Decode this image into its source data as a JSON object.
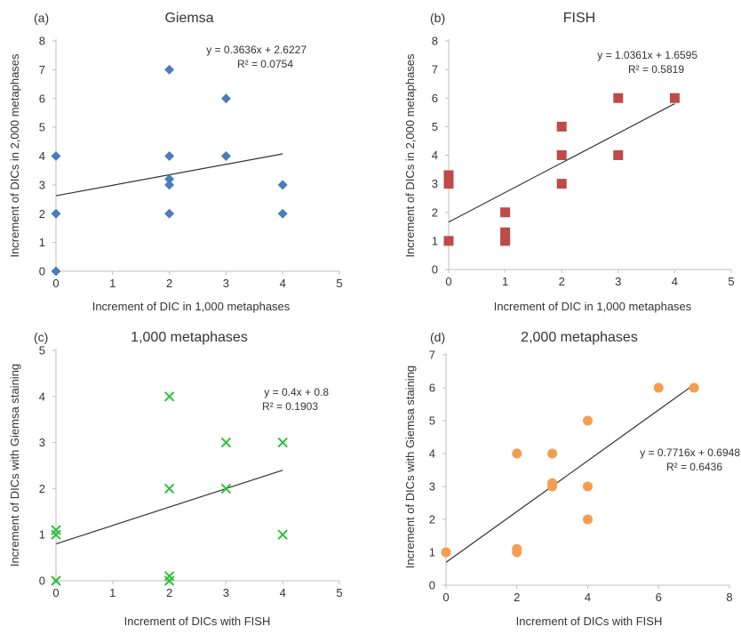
{
  "charts": [
    {
      "panel": "(a)",
      "type": "scatter",
      "title": "Giemsa",
      "xlabel": "Increment of DIC in 1,000 metaphases",
      "ylabel": "Increment of DICs in 2,000 metaphases",
      "xlim": [
        0,
        5
      ],
      "ylim": [
        0,
        8
      ],
      "xticks": [
        0,
        1,
        2,
        3,
        4,
        5
      ],
      "yticks": [
        0,
        1,
        2,
        3,
        4,
        5,
        6,
        7,
        8
      ],
      "marker": "diamond",
      "color": "#4a7ebb",
      "points": [
        [
          0,
          4
        ],
        [
          0,
          2
        ],
        [
          0,
          0
        ],
        [
          2,
          7
        ],
        [
          2,
          4
        ],
        [
          2,
          3.2
        ],
        [
          2,
          3
        ],
        [
          2,
          2
        ],
        [
          3,
          6
        ],
        [
          3,
          4
        ],
        [
          4,
          3
        ],
        [
          4,
          2
        ]
      ],
      "trendline": {
        "slope": 0.3636,
        "intercept": 2.6227,
        "x_range": [
          0,
          4
        ]
      },
      "equation": "y = 0.3636x + 2.6227",
      "r2": "R² = 0.0754"
    },
    {
      "panel": "(b)",
      "type": "scatter",
      "title": "FISH",
      "xlabel": "Increment of DIC in 1,000 metaphases",
      "ylabel": "Increment of DICs in 2,000 metaphases",
      "xlim": [
        0,
        5
      ],
      "ylim": [
        0,
        8
      ],
      "xticks": [
        0,
        1,
        2,
        3,
        4,
        5
      ],
      "yticks": [
        0,
        1,
        2,
        3,
        4,
        5,
        6,
        7,
        8
      ],
      "marker": "square",
      "color": "#be4b48",
      "points": [
        [
          0,
          3.3
        ],
        [
          0,
          3.1
        ],
        [
          0,
          3
        ],
        [
          0,
          1
        ],
        [
          1,
          2
        ],
        [
          1,
          1.3
        ],
        [
          1,
          1.1
        ],
        [
          1,
          1
        ],
        [
          2,
          5
        ],
        [
          2,
          4
        ],
        [
          2,
          3
        ],
        [
          3,
          6
        ],
        [
          3,
          4
        ],
        [
          4,
          6
        ]
      ],
      "trendline": {
        "slope": 1.0361,
        "intercept": 1.6595,
        "x_range": [
          0,
          4
        ]
      },
      "equation": "y = 1.0361x + 1.6595",
      "r2": "R² = 0.5819"
    },
    {
      "panel": "(c)",
      "type": "scatter",
      "title": "1,000 metaphases",
      "xlabel": "Increment of DICs with FISH",
      "ylabel": "Increment of DICs with Giemsa staining",
      "xlim": [
        0,
        5
      ],
      "ylim": [
        0,
        5
      ],
      "xticks": [
        0,
        1,
        2,
        3,
        4,
        5
      ],
      "yticks": [
        0,
        1,
        2,
        3,
        4,
        5
      ],
      "marker": "x",
      "color": "#2fbf3a",
      "points": [
        [
          0,
          1.1
        ],
        [
          0,
          1
        ],
        [
          0,
          0
        ],
        [
          2,
          4
        ],
        [
          2,
          2
        ],
        [
          2,
          0.1
        ],
        [
          2,
          0
        ],
        [
          3,
          3
        ],
        [
          3,
          2
        ],
        [
          4,
          3
        ],
        [
          4,
          1
        ]
      ],
      "trendline": {
        "slope": 0.4,
        "intercept": 0.8,
        "x_range": [
          0,
          4
        ]
      },
      "equation": "y = 0.4x + 0.8",
      "r2": "R² = 0.1903"
    },
    {
      "panel": "(d)",
      "type": "scatter",
      "title": "2,000 metaphases",
      "xlabel": "Increment of DICs with FISH",
      "ylabel": "Increment of DICs with Giemsa staining",
      "xlim": [
        0,
        8
      ],
      "ylim": [
        0,
        7
      ],
      "xticks": [
        0,
        2,
        4,
        6,
        8
      ],
      "yticks": [
        0,
        1,
        2,
        3,
        4,
        5,
        6,
        7
      ],
      "marker": "circle",
      "color": "#f59d4f",
      "points": [
        [
          0,
          1
        ],
        [
          2,
          4
        ],
        [
          2,
          1.1
        ],
        [
          2,
          1
        ],
        [
          3,
          4
        ],
        [
          3,
          3.1
        ],
        [
          3,
          3
        ],
        [
          4,
          5
        ],
        [
          4,
          3
        ],
        [
          4,
          2
        ],
        [
          6,
          6
        ],
        [
          7,
          6
        ]
      ],
      "trendline": {
        "slope": 0.7716,
        "intercept": 0.6948,
        "x_range": [
          0,
          7
        ]
      },
      "equation": "y = 0.7716x + 0.6948",
      "r2": "R² = 0.6436"
    }
  ]
}
